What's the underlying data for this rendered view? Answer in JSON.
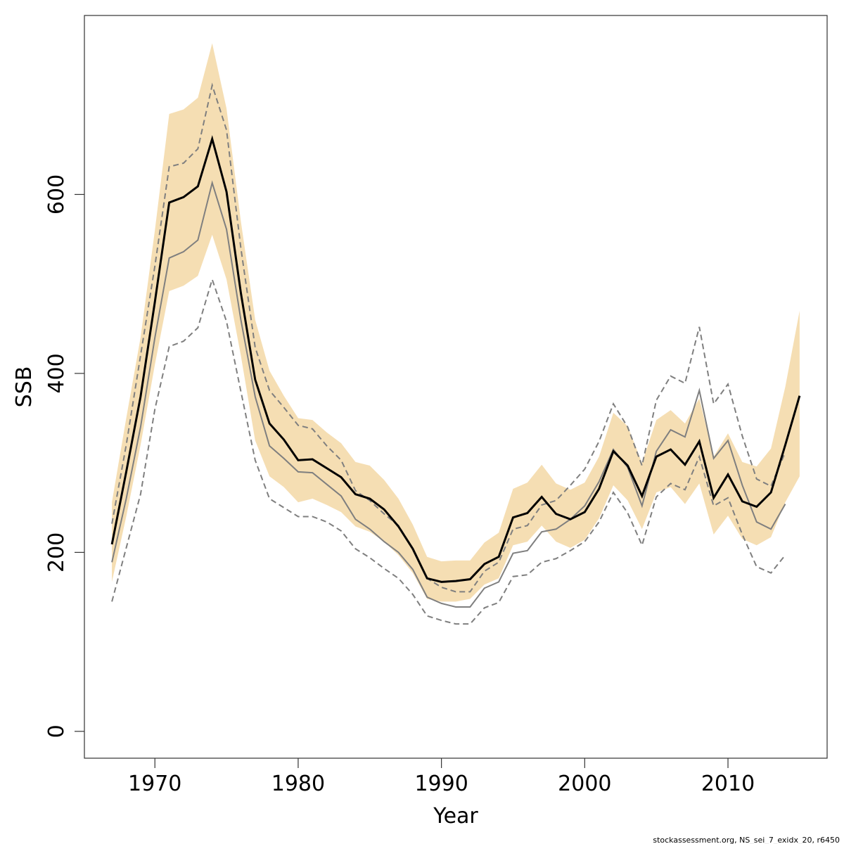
{
  "chart_data": {
    "type": "line",
    "x_label": "Year",
    "y_label": "SSB",
    "footer": "stockassessment.org, NS_sei_7_exidx_20, r6450",
    "x": [
      1967,
      1968,
      1969,
      1970,
      1971,
      1972,
      1973,
      1974,
      1975,
      1976,
      1977,
      1978,
      1979,
      1980,
      1981,
      1982,
      1983,
      1984,
      1985,
      1986,
      1987,
      1988,
      1989,
      1990,
      1991,
      1992,
      1993,
      1994,
      1995,
      1996,
      1997,
      1998,
      1999,
      2000,
      2001,
      2002,
      2003,
      2004,
      2005,
      2006,
      2007,
      2008,
      2009,
      2010,
      2011,
      2012,
      2013,
      2014,
      2015
    ],
    "band": {
      "color": "#f5deb3",
      "upper": [
        256,
        350,
        440,
        560,
        690,
        695,
        708,
        769,
        696,
        570,
        460,
        403,
        375,
        350,
        348,
        334,
        322,
        301,
        297,
        281,
        260,
        231,
        195,
        190,
        191,
        191,
        211,
        222,
        271,
        278,
        298,
        277,
        270,
        278,
        307,
        356,
        341,
        300,
        348,
        359,
        344,
        372,
        307,
        333,
        301,
        296,
        316,
        385,
        470
      ],
      "lower": [
        167,
        240,
        320,
        410,
        492,
        498,
        509,
        555,
        505,
        420,
        325,
        285,
        273,
        256,
        260,
        253,
        245,
        229,
        223,
        212,
        197,
        177,
        148,
        145,
        145,
        148,
        164,
        171,
        208,
        212,
        230,
        212,
        205,
        214,
        238,
        275,
        258,
        226,
        267,
        273,
        254,
        277,
        220,
        241,
        215,
        208,
        217,
        256,
        285
      ]
    },
    "series": [
      {
        "color": "#7f7f7f",
        "dashed": true,
        "values": [
          232,
          320,
          420,
          520,
          631,
          635,
          651,
          722,
          672,
          540,
          429,
          381,
          362,
          342,
          338,
          319,
          303,
          269,
          258,
          243,
          230,
          204,
          171,
          161,
          156,
          156,
          179,
          189,
          226,
          230,
          253,
          258,
          275,
          293,
          324,
          366,
          340,
          297,
          370,
          397,
          389,
          452,
          366,
          388,
          330,
          282,
          274,
          312,
          null
        ]
      },
      {
        "color": "#7f7f7f",
        "dashed": true,
        "values": [
          145,
          205,
          265,
          360,
          430,
          436,
          451,
          505,
          458,
          380,
          303,
          260,
          250,
          240,
          240,
          234,
          224,
          204,
          194,
          182,
          171,
          153,
          129,
          124,
          120,
          120,
          138,
          144,
          173,
          175,
          189,
          193,
          202,
          212,
          234,
          267,
          244,
          208,
          262,
          277,
          270,
          307,
          252,
          261,
          220,
          184,
          177,
          197,
          null
        ]
      },
      {
        "color": "#7f7f7f",
        "dashed": false,
        "values": [
          189,
          260,
          340,
          440,
          529,
          536,
          549,
          613,
          561,
          460,
          374,
          319,
          305,
          290,
          289,
          276,
          263,
          237,
          226,
          212,
          200,
          181,
          150,
          143,
          139,
          139,
          160,
          167,
          199,
          202,
          223,
          226,
          237,
          252,
          279,
          315,
          295,
          252,
          313,
          337,
          329,
          381,
          305,
          325,
          275,
          234,
          226,
          254,
          null
        ]
      },
      {
        "color": "#000000",
        "dashed": false,
        "values": [
          209,
          290,
          374,
          480,
          591,
          597,
          609,
          662,
          603,
          490,
          393,
          344,
          326,
          303,
          304,
          294,
          284,
          265,
          260,
          248,
          229,
          204,
          171,
          167,
          168,
          170,
          187,
          195,
          239,
          244,
          262,
          243,
          237,
          245,
          271,
          313,
          297,
          263,
          307,
          315,
          298,
          324,
          261,
          287,
          257,
          251,
          267,
          320,
          375
        ]
      }
    ],
    "xlim": [
      1965.08,
      2016.92
    ],
    "ylim": [
      -30,
      800
    ],
    "xticks": [
      1970,
      1980,
      1990,
      2000,
      2010
    ],
    "yticks": [
      0,
      200,
      400,
      600
    ]
  }
}
